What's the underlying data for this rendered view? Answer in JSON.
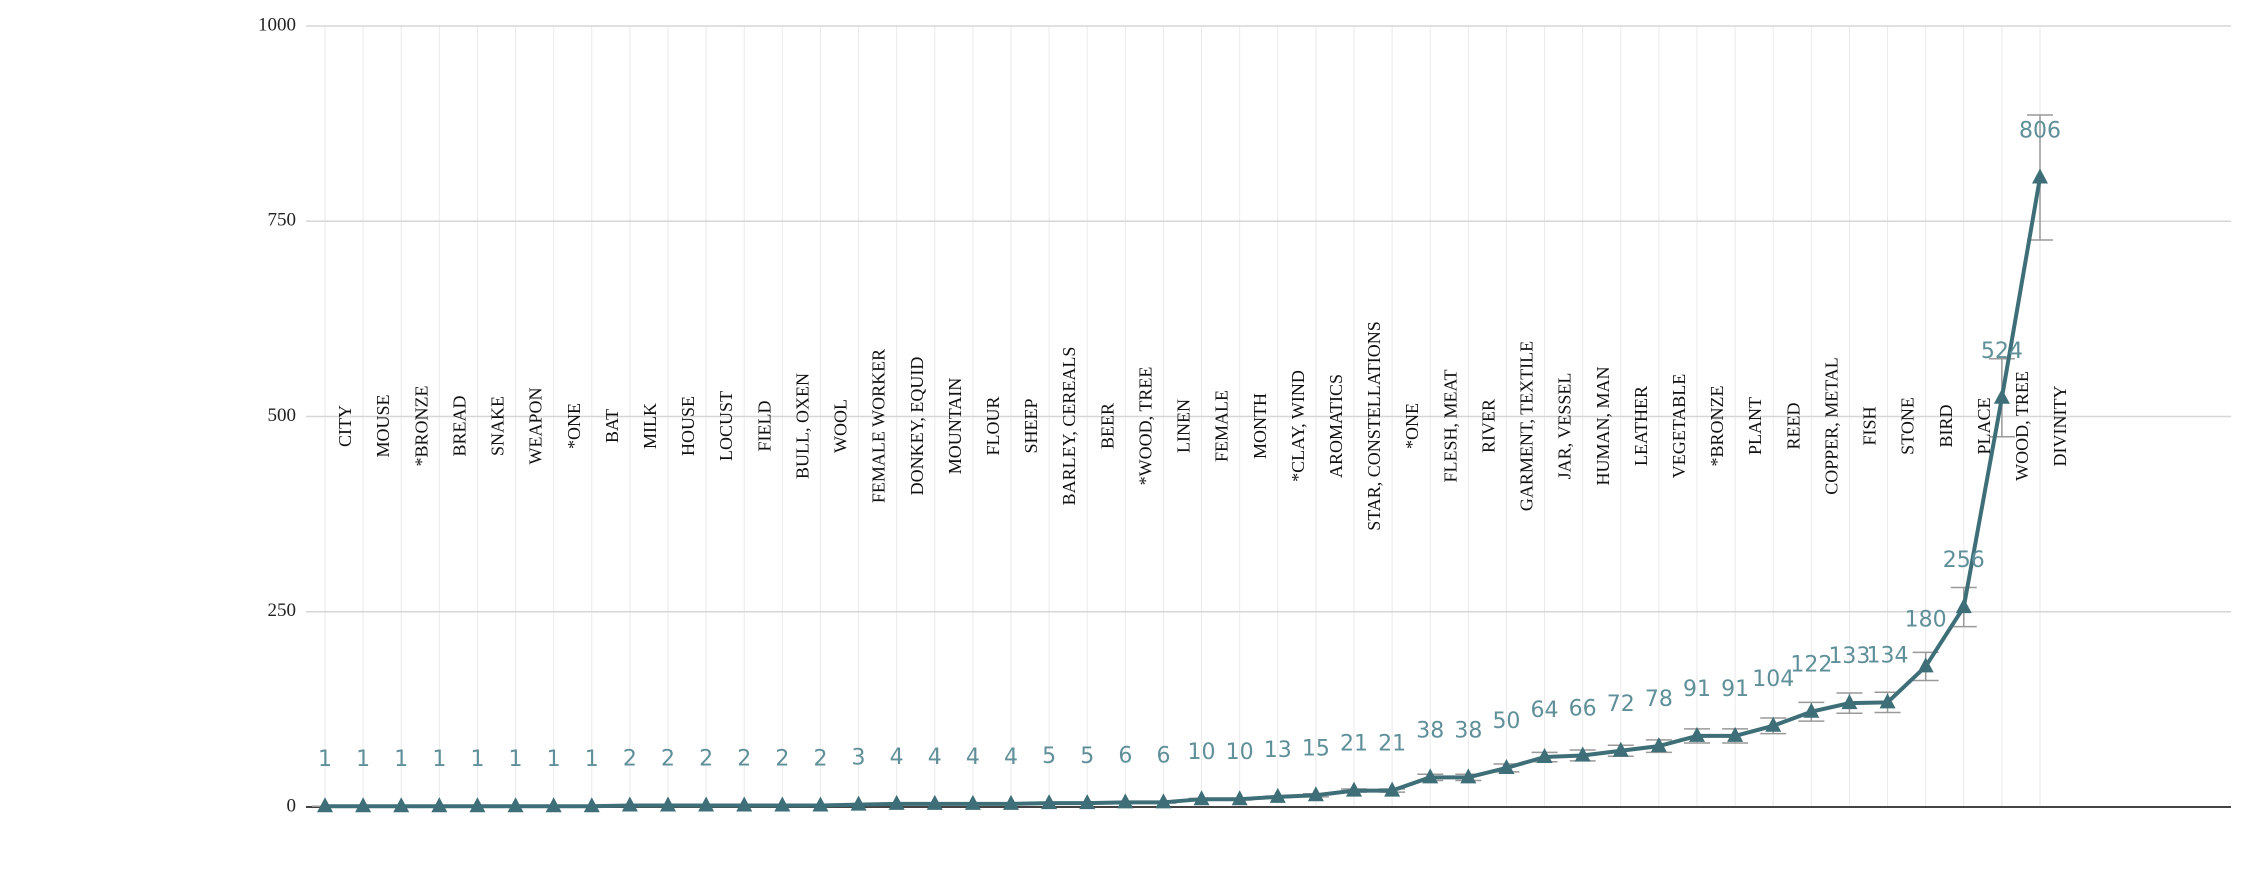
{
  "chart_data": {
    "type": "line",
    "categories": [
      "CITY",
      "MOUSE",
      "*BRONZE",
      "BREAD",
      "SNAKE",
      "WEAPON",
      "*ONE",
      "BAT",
      "MILK",
      "HOUSE",
      "LOCUST",
      "FIELD",
      "BULL, OXEN",
      "WOOL",
      "FEMALE WORKER",
      "DONKEY, EQUID",
      "MOUNTAIN",
      "FLOUR",
      "SHEEP",
      "BARLEY, CEREALS",
      "BEER",
      "*WOOD, TREE",
      "LINEN",
      "FEMALE",
      "MONTH",
      "*CLAY, WIND",
      "AROMATICS",
      "STAR, CONSTELLATIONS",
      "*ONE",
      "FLESH, MEAT",
      "RIVER",
      "GARMENT, TEXTILE",
      "JAR, VESSEL",
      "HUMAN, MAN",
      "LEATHER",
      "VEGETABLE",
      "*BRONZE",
      "PLANT",
      "REED",
      "COPPER, METAL",
      "FISH",
      "STONE",
      "BIRD",
      "PLACE",
      "WOOD, TREE",
      "DIVINITY"
    ],
    "series": [
      {
        "color": "#3e6f78",
        "values": [
          1,
          1,
          1,
          1,
          1,
          1,
          1,
          1,
          2,
          2,
          2,
          2,
          2,
          2,
          3,
          4,
          4,
          4,
          4,
          5,
          5,
          6,
          6,
          10,
          10,
          13,
          15,
          21,
          21,
          38,
          38,
          50,
          64,
          66,
          72,
          78,
          91,
          91,
          104,
          122,
          133,
          134,
          180,
          256,
          524,
          806
        ],
        "errors": [
          0,
          0,
          0,
          0,
          0,
          0,
          0,
          0,
          0,
          0,
          0,
          0,
          0,
          0,
          0,
          0,
          0,
          0,
          0,
          1,
          1,
          1,
          1,
          1,
          1,
          1,
          2,
          2,
          2,
          4,
          4,
          5,
          6,
          7,
          7,
          8,
          9,
          9,
          10,
          12,
          13,
          13,
          18,
          25,
          50,
          80
        ]
      }
    ],
    "ylim": [
      0,
      1000
    ],
    "yticks": [
      0,
      250,
      500,
      750,
      1000
    ],
    "grid": true
  }
}
